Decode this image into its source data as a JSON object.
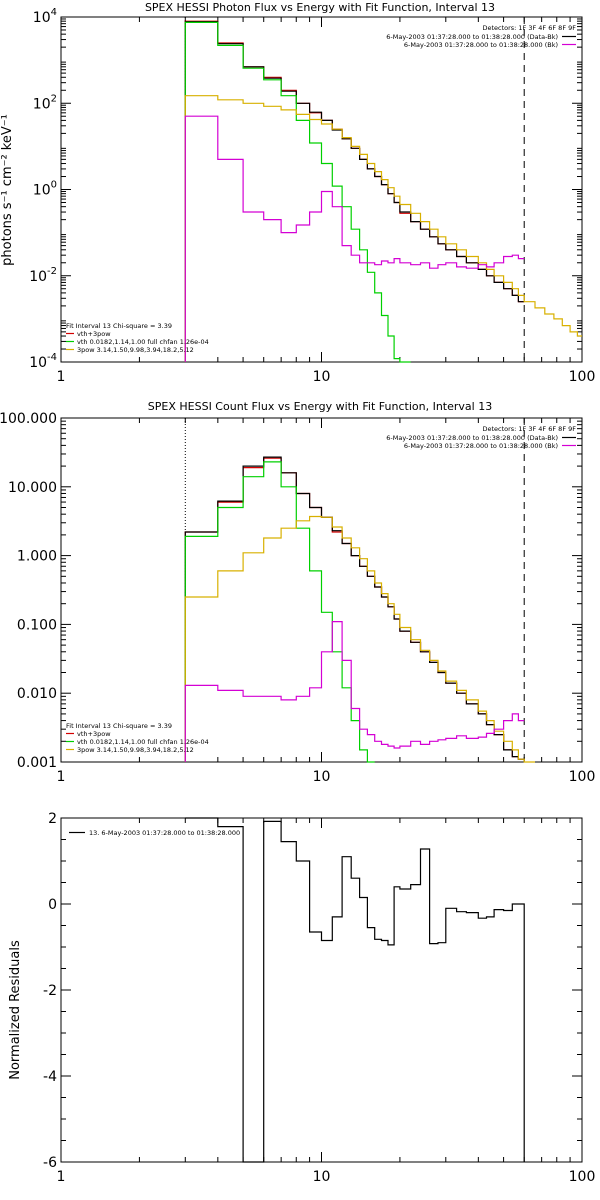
{
  "chart_data": [
    {
      "id": "photon",
      "type": "line",
      "title": "SPEX HESSI Photon Flux vs Energy with Fit Function, Interval 13",
      "xlabel": "",
      "ylabel": "photons s⁻¹ cm⁻² keV⁻¹",
      "xscale": "log",
      "yscale": "log",
      "xlim": [
        1,
        100
      ],
      "ylim": [
        0.0001,
        10000
      ],
      "x_ticks": [
        {
          "v": 1,
          "label": "1"
        },
        {
          "v": 10,
          "label": "10"
        },
        {
          "v": 100,
          "label": "100"
        }
      ],
      "y_ticks": [
        {
          "v": 0.0001,
          "mant": "10",
          "exp": "-4"
        },
        {
          "v": 0.01,
          "mant": "10",
          "exp": "-2"
        },
        {
          "v": 1,
          "mant": "10",
          "exp": "0"
        },
        {
          "v": 100,
          "mant": "10",
          "exp": "2"
        },
        {
          "v": 10000,
          "mant": "10",
          "exp": "4"
        }
      ],
      "legend_top_right": {
        "detectors": "Detectors: 1F 3F 4F 6F 8F 9F",
        "entries": [
          {
            "text": "6-May-2003 01:37:28.000 to 01:38:28.000 (Data-Bk)",
            "color": "#000000"
          },
          {
            "text": "6-May-2003 01:37:28.000 to 01:38:28.000 (Bk)",
            "color": "#d400d4"
          }
        ]
      },
      "legend_bottom_left": {
        "header": "Fit Interval 13    Chi-square = 3.39",
        "entries": [
          {
            "text": "vth+3pow",
            "color": "#d40000"
          },
          {
            "text": "vth 0.0182,1.14,1.00  full chfan 1.26e-04",
            "color": "#00d000"
          },
          {
            "text": "3pow 3.14,1.50,9.98,3.94,18.2,5.12",
            "color": "#d8b000"
          }
        ]
      },
      "vlines": [
        {
          "x": 3,
          "style": "dotted",
          "color": "#000000"
        },
        {
          "x": 60,
          "style": "dashed",
          "color": "#000000"
        }
      ],
      "edges": [
        3,
        4,
        5,
        6,
        7,
        8,
        9,
        10,
        11,
        12,
        13,
        14,
        15,
        16,
        17,
        18,
        19,
        20,
        22,
        24,
        26,
        28,
        30,
        33,
        36,
        40,
        43,
        46,
        50,
        54,
        57,
        60,
        66,
        72,
        78,
        84,
        90,
        96,
        100
      ],
      "series": [
        {
          "name": "vth+3pow",
          "color": "#d40000",
          "values": [
            8000,
            2500,
            700,
            400,
            200,
            100,
            60,
            40,
            25,
            15,
            9,
            5,
            3,
            2,
            1.3,
            0.8,
            0.5,
            0.28,
            0.18,
            0.12,
            0.08,
            0.055,
            0.04,
            0.028,
            0.02,
            0.014,
            0.01,
            0.007,
            0.005,
            0.0035,
            0.0025,
            null,
            null,
            null,
            null,
            null,
            null,
            null
          ]
        },
        {
          "name": "data",
          "color": "#000000",
          "values": [
            7800,
            2400,
            700,
            380,
            190,
            100,
            62,
            40,
            24,
            15,
            9,
            5,
            3,
            2,
            1.3,
            0.8,
            0.5,
            0.3,
            0.18,
            0.12,
            0.08,
            0.055,
            0.04,
            0.028,
            0.02,
            0.014,
            0.01,
            0.007,
            0.005,
            0.0035,
            0.0025,
            null,
            null,
            null,
            null,
            null,
            null,
            null
          ]
        },
        {
          "name": "vth",
          "color": "#00d000",
          "values": [
            7500,
            2200,
            650,
            350,
            150,
            40,
            12,
            4,
            1.2,
            0.4,
            0.12,
            0.04,
            0.012,
            0.004,
            0.0012,
            0.0004,
            0.00012,
            5e-05,
            null,
            null,
            null,
            null,
            null,
            null,
            null,
            null,
            null,
            null,
            null,
            null,
            null,
            null,
            null,
            null,
            null,
            null,
            null,
            null
          ]
        },
        {
          "name": "3pow",
          "color": "#d8b000",
          "values": [
            150,
            120,
            100,
            85,
            70,
            55,
            42,
            33,
            25,
            16,
            10,
            6.5,
            4,
            2.6,
            1.7,
            1.1,
            0.7,
            0.45,
            0.28,
            0.18,
            0.12,
            0.08,
            0.055,
            0.04,
            0.028,
            0.02,
            0.014,
            0.01,
            0.007,
            0.005,
            0.0035,
            0.0025,
            0.0018,
            0.0013,
            0.001,
            0.0007,
            0.0005,
            0.0004
          ]
        },
        {
          "name": "Bk",
          "color": "#d400d4",
          "values": [
            50,
            5,
            0.3,
            0.2,
            0.1,
            0.15,
            0.3,
            0.9,
            0.4,
            0.05,
            0.03,
            0.02,
            0.02,
            0.018,
            0.022,
            0.02,
            0.025,
            0.02,
            0.018,
            0.02,
            0.015,
            0.018,
            0.02,
            0.016,
            0.015,
            0.018,
            0.016,
            0.02,
            0.028,
            0.03,
            0.025,
            null,
            null,
            null,
            null,
            null,
            null,
            null
          ]
        }
      ]
    },
    {
      "id": "count",
      "type": "line",
      "title": "SPEX HESSI Count Flux vs Energy with Fit Function, Interval 13",
      "xlabel": "",
      "ylabel": "",
      "xscale": "log",
      "yscale": "log",
      "xlim": [
        1,
        100
      ],
      "ylim": [
        0.001,
        100
      ],
      "x_ticks": [
        {
          "v": 1,
          "label": "1"
        },
        {
          "v": 10,
          "label": "10"
        },
        {
          "v": 100,
          "label": "100"
        }
      ],
      "y_ticks": [
        {
          "v": 0.001,
          "label": "0.001"
        },
        {
          "v": 0.01,
          "label": "0.010"
        },
        {
          "v": 0.1,
          "label": "0.100"
        },
        {
          "v": 1,
          "label": "1.000"
        },
        {
          "v": 10,
          "label": "10.000"
        },
        {
          "v": 100,
          "label": "100.000"
        }
      ],
      "legend_top_right": {
        "detectors": "Detectors: 1F 3F 4F 6F 8F 9F",
        "entries": [
          {
            "text": "6-May-2003 01:37:28.000 to 01:38:28.000 (Data-Bk)",
            "color": "#000000"
          },
          {
            "text": "6-May-2003 01:37:28.000 to 01:38:28.000 (Bk)",
            "color": "#d400d4"
          }
        ]
      },
      "legend_bottom_left": {
        "header": "Fit Interval 13    Chi-square = 3.39",
        "entries": [
          {
            "text": "vth+3pow",
            "color": "#d40000"
          },
          {
            "text": "vth 0.0182,1.14,1.00  full chfan 1.26e-04",
            "color": "#00d000"
          },
          {
            "text": "3pow 3.14,1.50,9.98,3.94,18.2,5.12",
            "color": "#d8b000"
          }
        ]
      },
      "vlines": [
        {
          "x": 3,
          "style": "dotted",
          "color": "#000000"
        },
        {
          "x": 60,
          "style": "dashed",
          "color": "#000000"
        }
      ],
      "edges": [
        3,
        4,
        5,
        6,
        7,
        8,
        9,
        10,
        11,
        12,
        13,
        14,
        15,
        16,
        17,
        18,
        19,
        20,
        22,
        24,
        26,
        28,
        30,
        33,
        36,
        40,
        43,
        46,
        50,
        54,
        57,
        60,
        66
      ],
      "series": [
        {
          "name": "vth+3pow",
          "color": "#d40000",
          "values": [
            2.2,
            6,
            19,
            26,
            16,
            8,
            5,
            3.6,
            2.2,
            1.5,
            1,
            0.7,
            0.5,
            0.35,
            0.25,
            0.18,
            0.12,
            0.08,
            0.055,
            0.04,
            0.028,
            0.02,
            0.014,
            0.01,
            0.007,
            0.005,
            0.0035,
            0.0025,
            0.0015,
            0.0012,
            0.0011,
            null
          ]
        },
        {
          "name": "data",
          "color": "#000000",
          "values": [
            2.2,
            6.2,
            20,
            27,
            16,
            8,
            5,
            3.6,
            2.3,
            1.5,
            1,
            0.7,
            0.5,
            0.35,
            0.25,
            0.18,
            0.12,
            0.08,
            0.055,
            0.04,
            0.028,
            0.02,
            0.014,
            0.01,
            0.007,
            0.005,
            0.0035,
            0.0025,
            0.0015,
            0.0012,
            0.0011,
            null
          ]
        },
        {
          "name": "vth",
          "color": "#00d000",
          "values": [
            1.9,
            5,
            14,
            23,
            10,
            2.5,
            0.6,
            0.15,
            0.04,
            0.012,
            0.004,
            0.0015,
            0.0005,
            null,
            null,
            null,
            null,
            null,
            null,
            null,
            null,
            null,
            null,
            null,
            null,
            null,
            null,
            null,
            null,
            null,
            null,
            null
          ]
        },
        {
          "name": "3pow",
          "color": "#d8b000",
          "values": [
            0.25,
            0.6,
            1.1,
            1.8,
            2.5,
            3.2,
            3.7,
            3.6,
            2.6,
            1.8,
            1.3,
            0.9,
            0.6,
            0.4,
            0.28,
            0.2,
            0.14,
            0.09,
            0.06,
            0.042,
            0.03,
            0.021,
            0.015,
            0.011,
            0.008,
            0.0055,
            0.004,
            0.0028,
            0.002,
            0.0015,
            0.0011,
            0.0009
          ]
        },
        {
          "name": "Bk",
          "color": "#d400d4",
          "values": [
            0.013,
            0.011,
            0.009,
            0.009,
            0.008,
            0.009,
            0.012,
            0.04,
            0.11,
            0.03,
            0.006,
            0.003,
            0.0025,
            0.002,
            0.0018,
            0.0017,
            0.0016,
            0.0017,
            0.002,
            0.0018,
            0.002,
            0.0021,
            0.0022,
            0.0024,
            0.0022,
            0.0023,
            0.0026,
            0.003,
            0.004,
            0.005,
            0.004,
            null
          ]
        }
      ]
    },
    {
      "id": "resid",
      "type": "line",
      "title": "",
      "xlabel": "",
      "ylabel": "Normalized Residuals",
      "xscale": "log",
      "yscale": "linear",
      "xlim": [
        1,
        100
      ],
      "ylim": [
        -6,
        2
      ],
      "x_ticks": [
        {
          "v": 1,
          "label": "1"
        },
        {
          "v": 10,
          "label": "10"
        },
        {
          "v": 100,
          "label": "100"
        }
      ],
      "y_ticks": [
        {
          "v": -6,
          "label": "-6"
        },
        {
          "v": -4,
          "label": "-4"
        },
        {
          "v": -2,
          "label": "-2"
        },
        {
          "v": 0,
          "label": "0"
        },
        {
          "v": 2,
          "label": "2"
        }
      ],
      "legend_top_left": {
        "text": "13.  6-May-2003 01:37:28.000 to 01:38:28.000",
        "color": "#000000"
      },
      "edges": [
        3,
        4,
        5,
        6,
        7,
        8,
        9,
        10,
        11,
        12,
        13,
        14,
        15,
        16,
        17,
        18,
        19,
        20,
        22,
        24,
        26,
        28,
        30,
        33,
        36,
        40,
        43,
        46,
        50,
        54,
        57,
        60
      ],
      "series": [
        {
          "name": "residuals",
          "color": "#000000",
          "values": [
            2.02,
            1.8,
            -6.0,
            1.92,
            1.45,
            1.0,
            -0.65,
            -0.85,
            -0.3,
            1.1,
            0.6,
            0.15,
            -0.55,
            -0.82,
            -0.85,
            -0.95,
            0.4,
            0.35,
            0.45,
            1.28,
            -0.92,
            -0.9,
            -0.1,
            -0.18,
            -0.2,
            -0.33,
            -0.3,
            -0.13,
            -0.15,
            0.0,
            0.0
          ]
        }
      ]
    }
  ]
}
